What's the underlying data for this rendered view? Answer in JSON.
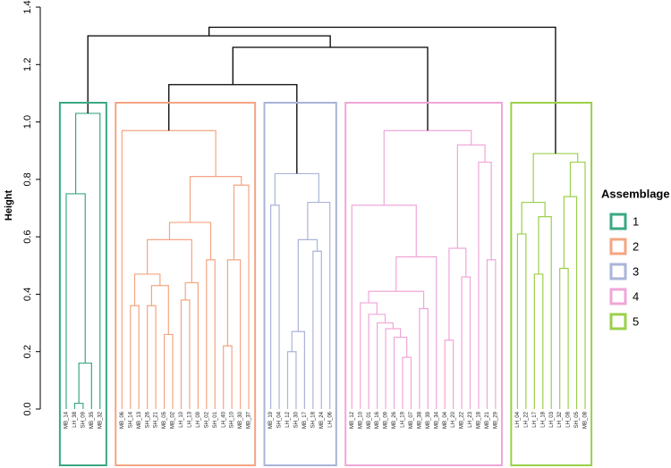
{
  "chart_data": {
    "type": "dendrogram",
    "y_label": "Height",
    "ylim": [
      0,
      1.4
    ],
    "yticks": [
      {
        "value": 0,
        "label": "0.0"
      },
      0.2,
      0.4,
      0.6,
      0.8,
      {
        "value": 1,
        "label": "1.0"
      },
      1.2,
      1.4
    ],
    "legend": {
      "title": "Assemblage",
      "items": [
        {
          "name": "1",
          "color": "#3aa882"
        },
        {
          "name": "2",
          "color": "#f4a582"
        },
        {
          "name": "3",
          "color": "#aab4d8"
        },
        {
          "name": "4",
          "color": "#f0a6d8"
        },
        {
          "name": "5",
          "color": "#9ccf4a"
        }
      ]
    },
    "tree": {
      "height": 1.33,
      "children": [
        {
          "height": 1.3,
          "children": [
            {
              "height": 1.03,
              "color": "#3aa882",
              "children": [
                {
                  "height": 0.75,
                  "children": [
                    {
                      "label": "MB_14"
                    },
                    {
                      "height": 0.16,
                      "children": [
                        {
                          "height": 0.02,
                          "children": [
                            {
                              "label": "LH_38"
                            },
                            {
                              "label": "SH_09"
                            }
                          ]
                        },
                        {
                          "label": "MB_35"
                        }
                      ]
                    }
                  ]
                },
                {
                  "label": "MB_32"
                }
              ]
            },
            {
              "height": 1.26,
              "children": [
                {
                  "height": 1.13,
                  "children": [
                    {
                      "height": 0.97,
                      "color": "#f4a582",
                      "children": [
                        {
                          "label": "MB_06"
                        },
                        {
                          "height": 0.81,
                          "children": [
                            {
                              "height": 0.65,
                              "children": [
                                {
                                  "height": 0.59,
                                  "children": [
                                    {
                                      "height": 0.47,
                                      "children": [
                                        {
                                          "height": 0.36,
                                          "children": [
                                            {
                                              "label": "SH_14"
                                            },
                                            {
                                              "label": "MB_13"
                                            }
                                          ]
                                        },
                                        {
                                          "height": 0.43,
                                          "children": [
                                            {
                                              "height": 0.36,
                                              "children": [
                                                {
                                                  "label": "SH_26"
                                                },
                                                {
                                                  "label": "SH_21"
                                                }
                                              ]
                                            },
                                            {
                                              "height": 0.26,
                                              "children": [
                                                {
                                                  "label": "MB_05"
                                                },
                                                {
                                                  "label": "MB_02"
                                                }
                                              ]
                                            }
                                          ]
                                        }
                                      ]
                                    },
                                    {
                                      "height": 0.44,
                                      "children": [
                                        {
                                          "height": 0.38,
                                          "children": [
                                            {
                                              "label": "LH_10"
                                            },
                                            {
                                              "label": "LH_13"
                                            }
                                          ]
                                        },
                                        {
                                          "label": "LH_09"
                                        }
                                      ]
                                    }
                                  ]
                                },
                                {
                                  "height": 0.52,
                                  "children": [
                                    {
                                      "label": "SH_02"
                                    },
                                    {
                                      "label": "SH_01"
                                    }
                                  ]
                                }
                              ]
                            },
                            {
                              "height": 0.78,
                              "children": [
                                {
                                  "height": 0.52,
                                  "children": [
                                    {
                                      "height": 0.22,
                                      "children": [
                                        {
                                          "label": "LH_40"
                                        },
                                        {
                                          "label": "SH_10"
                                        }
                                      ]
                                    },
                                    {
                                      "label": "MB_30"
                                    }
                                  ]
                                },
                                {
                                  "label": "MB_37"
                                }
                              ]
                            }
                          ]
                        }
                      ]
                    },
                    {
                      "height": 0.82,
                      "color": "#aab4d8",
                      "children": [
                        {
                          "height": 0.71,
                          "children": [
                            {
                              "label": "MB_19"
                            },
                            {
                              "label": "SH_04"
                            }
                          ]
                        },
                        {
                          "height": 0.72,
                          "children": [
                            {
                              "height": 0.59,
                              "children": [
                                {
                                  "height": 0.27,
                                  "children": [
                                    {
                                      "height": 0.2,
                                      "children": [
                                        {
                                          "label": "LH_12"
                                        },
                                        {
                                          "label": "SH_30"
                                        }
                                      ]
                                    },
                                    {
                                      "label": "MB_17"
                                    }
                                  ]
                                },
                                {
                                  "height": 0.55,
                                  "children": [
                                    {
                                      "label": "SH_18"
                                    },
                                    {
                                      "label": "MB_24"
                                    }
                                  ]
                                }
                              ]
                            },
                            {
                              "label": "LH_06"
                            }
                          ]
                        }
                      ]
                    }
                  ]
                },
                {
                  "height": 0.97,
                  "color": "#f0a6d8",
                  "children": [
                    {
                      "height": 0.71,
                      "children": [
                        {
                          "label": "MB_12"
                        },
                        {
                          "height": 0.53,
                          "children": [
                            {
                              "height": 0.41,
                              "children": [
                                {
                                  "height": 0.37,
                                  "children": [
                                    {
                                      "label": "MB_10"
                                    },
                                    {
                                      "height": 0.33,
                                      "children": [
                                        {
                                          "label": "MB_01"
                                        },
                                        {
                                          "height": 0.3,
                                          "children": [
                                            {
                                              "label": "MB_16"
                                            },
                                            {
                                              "height": 0.28,
                                              "children": [
                                                {
                                                  "label": "MB_09"
                                                },
                                                {
                                                  "height": 0.25,
                                                  "children": [
                                                    {
                                                      "label": "MB_26"
                                                    },
                                                    {
                                                      "height": 0.18,
                                                      "children": [
                                                        {
                                                          "label": "LH_19"
                                                        },
                                                        {
                                                          "label": "MB_07"
                                                        }
                                                      ]
                                                    }
                                                  ]
                                                }
                                              ]
                                            }
                                          ]
                                        }
                                      ]
                                    }
                                  ]
                                },
                                {
                                  "height": 0.35,
                                  "children": [
                                    {
                                      "label": "MB_38"
                                    },
                                    {
                                      "label": "MB_39"
                                    }
                                  ]
                                }
                              ]
                            },
                            {
                              "label": "MB_34"
                            }
                          ]
                        }
                      ]
                    },
                    {
                      "height": 0.92,
                      "children": [
                        {
                          "height": 0.56,
                          "children": [
                            {
                              "height": 0.24,
                              "children": [
                                {
                                  "label": "MB_04"
                                },
                                {
                                  "label": "LH_20"
                                }
                              ]
                            },
                            {
                              "height": 0.46,
                              "children": [
                                {
                                  "label": "MB_22"
                                },
                                {
                                  "label": "LH_23"
                                }
                              ]
                            }
                          ]
                        },
                        {
                          "height": 0.86,
                          "children": [
                            {
                              "label": "MB_18"
                            },
                            {
                              "height": 0.52,
                              "children": [
                                {
                                  "label": "MB_21"
                                },
                                {
                                  "label": "MB_29"
                                }
                              ]
                            }
                          ]
                        }
                      ]
                    }
                  ]
                }
              ]
            }
          ]
        },
        {
          "height": 0.89,
          "color": "#9ccf4a",
          "children": [
            {
              "height": 0.72,
              "children": [
                {
                  "height": 0.61,
                  "children": [
                    {
                      "label": "LH_04"
                    },
                    {
                      "label": "LH_22"
                    }
                  ]
                },
                {
                  "height": 0.67,
                  "children": [
                    {
                      "height": 0.47,
                      "children": [
                        {
                          "label": "LH_17"
                        },
                        {
                          "label": "LH_18"
                        }
                      ]
                    },
                    {
                      "label": "LH_03"
                    }
                  ]
                }
              ]
            },
            {
              "height": 0.86,
              "children": [
                {
                  "height": 0.74,
                  "children": [
                    {
                      "height": 0.49,
                      "children": [
                        {
                          "label": "LH_32"
                        },
                        {
                          "label": "LH_08"
                        }
                      ]
                    },
                    {
                      "label": "SH_05"
                    }
                  ]
                },
                {
                  "label": "MB_08"
                }
              ]
            }
          ]
        }
      ]
    }
  }
}
